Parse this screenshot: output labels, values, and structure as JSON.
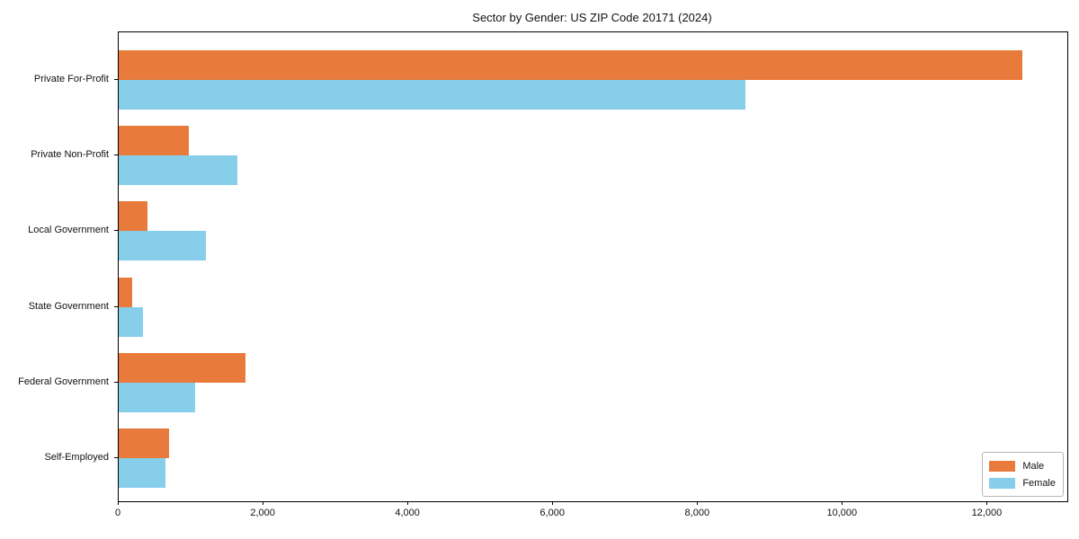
{
  "chart_data": {
    "type": "bar",
    "orientation": "horizontal",
    "title": "Sector by Gender: US ZIP Code 20171 (2024)",
    "categories": [
      "Private For-Profit",
      "Private Non-Profit",
      "Local Government",
      "State Government",
      "Federal Government",
      "Self-Employed"
    ],
    "series": [
      {
        "name": "Male",
        "color": "#e87a3c",
        "values": [
          12480,
          970,
          400,
          190,
          1750,
          700
        ]
      },
      {
        "name": "Female",
        "color": "#87ceeb",
        "values": [
          8650,
          1640,
          1210,
          340,
          1060,
          640
        ]
      }
    ],
    "xlim": [
      0,
      13100
    ],
    "xticks": [
      0,
      2000,
      4000,
      6000,
      8000,
      10000,
      12000
    ],
    "xtick_labels": [
      "0",
      "2,000",
      "4,000",
      "6,000",
      "8,000",
      "10,000",
      "12,000"
    ],
    "xlabel": "",
    "ylabel": "",
    "grid": false,
    "legend_position": "lower right",
    "frame_color": "#000000",
    "background_color": "#ffffff"
  }
}
